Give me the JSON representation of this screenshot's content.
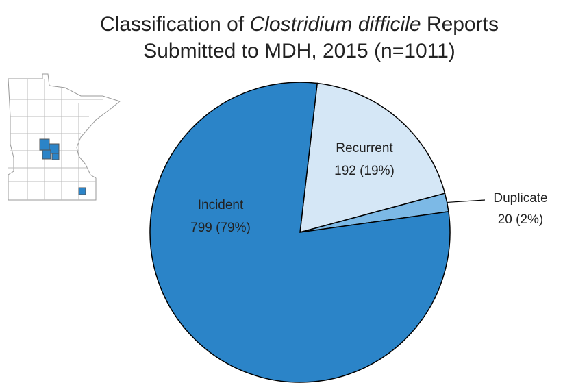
{
  "chart_data": {
    "type": "pie",
    "title": [
      [
        "Classification of ",
        "Clostridium difficile",
        " Reports"
      ],
      "Submitted to MDH, 2015 (n=1011)"
    ],
    "categories": [
      "Recurrent",
      "Duplicate",
      "Incident"
    ],
    "values": [
      192,
      20,
      799
    ],
    "value_labels": [
      "192 (19%)",
      "20 (2%)",
      "799 (79%)"
    ],
    "colors": [
      "#d5e7f6",
      "#7cb9e6",
      "#2b84c8"
    ]
  }
}
